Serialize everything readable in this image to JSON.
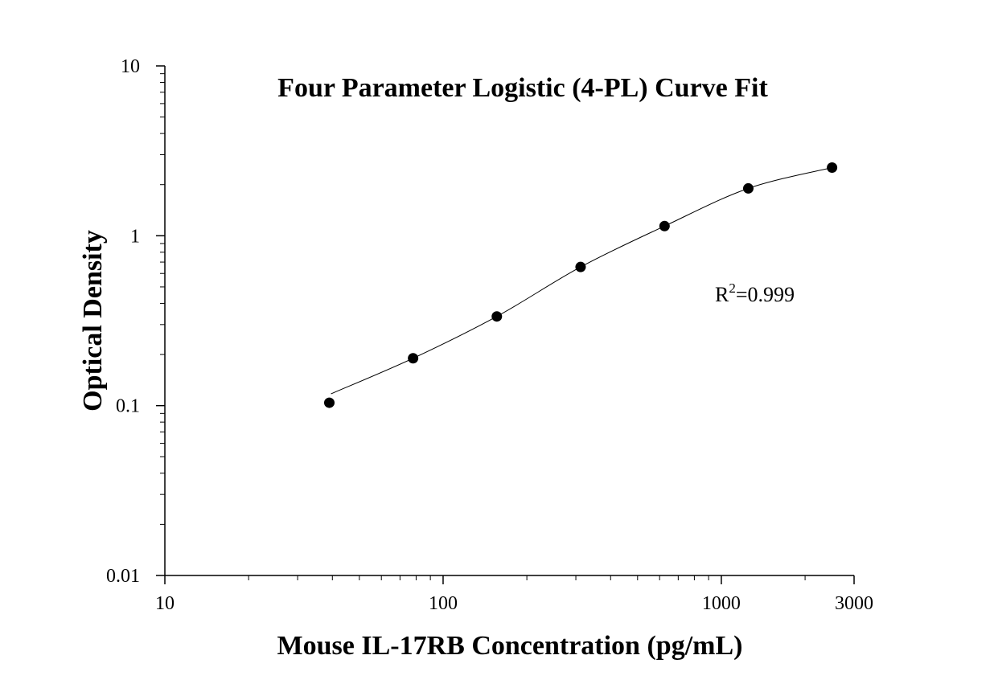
{
  "chart_data": {
    "type": "scatter",
    "title": "Four Parameter Logistic (4-PL) Curve Fit",
    "xlabel": "Mouse IL-17RB Concentration (pg/mL)",
    "ylabel": "Optical Density",
    "x_scale": "log",
    "y_scale": "log",
    "xlim": [
      10,
      3000
    ],
    "ylim": [
      0.01,
      10
    ],
    "x_ticks": [
      10,
      100,
      1000,
      3000
    ],
    "x_tick_labels": [
      "10",
      "100",
      "1000",
      "3000"
    ],
    "y_ticks": [
      0.01,
      0.1,
      1,
      10
    ],
    "y_tick_labels": [
      "0.01",
      "0.1",
      "1",
      "10"
    ],
    "grid": false,
    "points": [
      {
        "x": 39,
        "y": 0.104
      },
      {
        "x": 78,
        "y": 0.19
      },
      {
        "x": 156,
        "y": 0.335
      },
      {
        "x": 312,
        "y": 0.655
      },
      {
        "x": 625,
        "y": 1.14
      },
      {
        "x": 1250,
        "y": 1.9
      },
      {
        "x": 2500,
        "y": 2.52
      }
    ],
    "fit_curve": {
      "model": "4-PL",
      "x_range": [
        39,
        2500
      ]
    },
    "annotation": {
      "base": "R",
      "sup": "2",
      "value": "=0.999"
    }
  },
  "colors": {
    "axis": "#000000",
    "points": "#000000",
    "curve": "#000000",
    "background": "#ffffff"
  }
}
